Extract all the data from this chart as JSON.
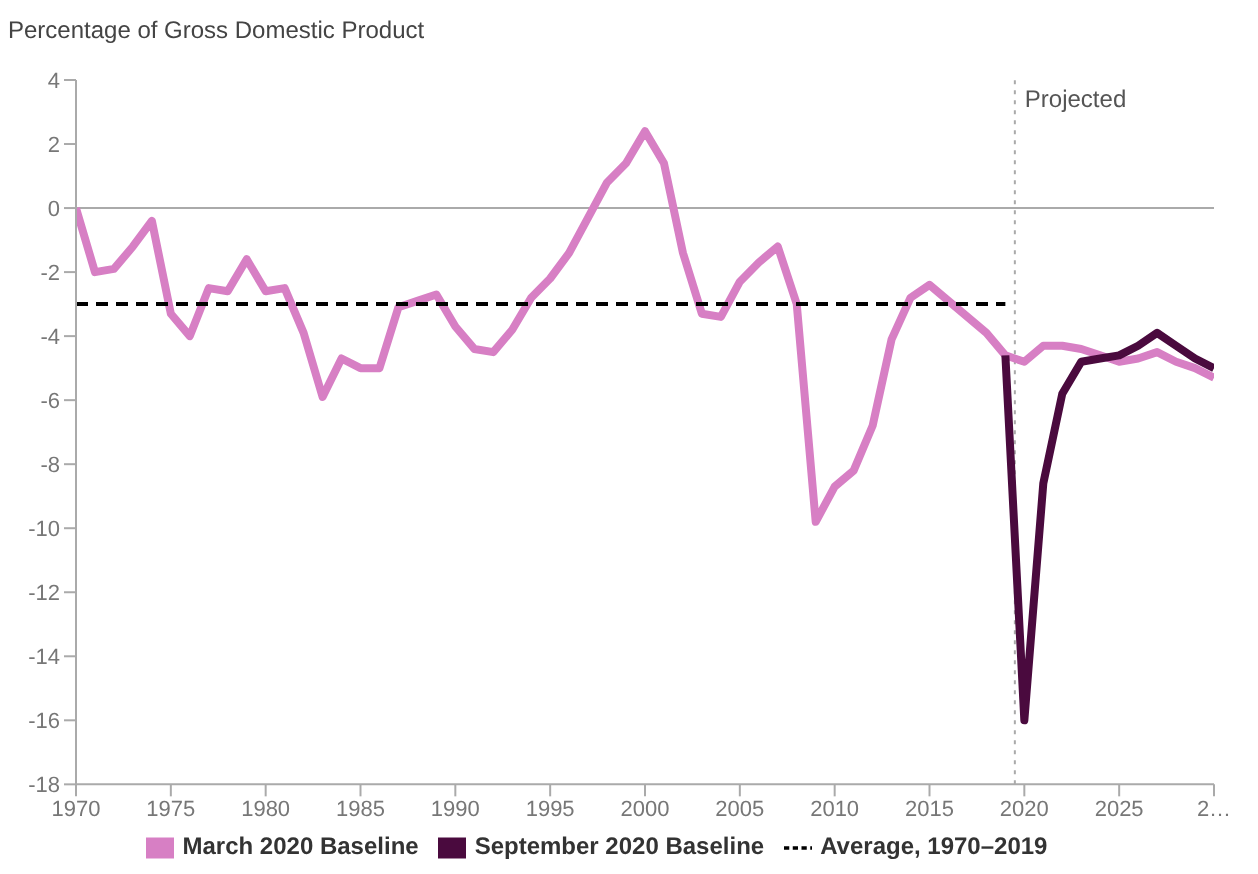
{
  "chart_data": {
    "type": "line",
    "ylabel": "Percentage of Gross Domestic Product",
    "x": [
      1970,
      1971,
      1972,
      1973,
      1974,
      1975,
      1976,
      1977,
      1978,
      1979,
      1980,
      1981,
      1982,
      1983,
      1984,
      1985,
      1986,
      1987,
      1988,
      1989,
      1990,
      1991,
      1992,
      1993,
      1994,
      1995,
      1996,
      1997,
      1998,
      1999,
      2000,
      2001,
      2002,
      2003,
      2004,
      2005,
      2006,
      2007,
      2008,
      2009,
      2010,
      2011,
      2012,
      2013,
      2014,
      2015,
      2016,
      2017,
      2018,
      2019,
      2020,
      2021,
      2022,
      2023,
      2024,
      2025,
      2026,
      2027,
      2028,
      2029,
      2030
    ],
    "series": [
      {
        "name": "March 2020 Baseline",
        "color": "#d77fc4",
        "values": [
          0,
          -2.0,
          -1.9,
          -1.2,
          -0.4,
          -3.3,
          -4.0,
          -2.5,
          -2.6,
          -1.6,
          -2.6,
          -2.5,
          -3.9,
          -5.9,
          -4.7,
          -5.0,
          -5.0,
          -3.1,
          -2.9,
          -2.7,
          -3.7,
          -4.4,
          -4.5,
          -3.8,
          -2.8,
          -2.2,
          -1.4,
          -0.3,
          0.8,
          1.4,
          2.4,
          1.4,
          -1.4,
          -3.3,
          -3.4,
          -2.3,
          -1.7,
          -1.2,
          -3.0,
          -9.8,
          -8.7,
          -8.2,
          -6.8,
          -4.1,
          -2.8,
          -2.4,
          -2.9,
          -3.4,
          -3.9,
          -4.6,
          -4.8,
          -4.3,
          -4.3,
          -4.4,
          -4.6,
          -4.8,
          -4.7,
          -4.5,
          -4.8,
          -5.0,
          -5.3
        ]
      },
      {
        "name": "September 2020 Baseline",
        "color": "#4a0a3e",
        "x": [
          2019,
          2020,
          2021,
          2022,
          2023,
          2024,
          2025,
          2026,
          2027,
          2028,
          2029,
          2030
        ],
        "values": [
          -4.6,
          -16.0,
          -8.6,
          -5.8,
          -4.8,
          -4.7,
          -4.6,
          -4.3,
          -3.9,
          -4.3,
          -4.7,
          -5.0
        ]
      },
      {
        "name": "Average, 1970–2019",
        "color": "#000000",
        "line_style": "dashed",
        "x": [
          1970,
          2019
        ],
        "values": [
          -3,
          -3
        ]
      }
    ],
    "xlim": [
      1970,
      2030
    ],
    "xticks": [
      1970,
      1975,
      1980,
      1985,
      1990,
      1995,
      2000,
      2005,
      2010,
      2015,
      2020,
      2025,
      {
        "value": 2030,
        "label": "2…"
      }
    ],
    "ylim": [
      -18,
      4
    ],
    "yticks": [
      -18,
      -16,
      -14,
      -12,
      -10,
      -8,
      -6,
      -4,
      -2,
      0,
      2,
      4
    ],
    "ref_lines": [
      {
        "axis": "y",
        "value": 0,
        "color": "#aaaaaa",
        "line_style": "solid"
      },
      {
        "axis": "x",
        "value": 2019.5,
        "label": "Projected",
        "color": "#aaaaaa",
        "line_style": "dotted"
      }
    ],
    "legend": "bottom",
    "grid": false,
    "marker": "none"
  }
}
